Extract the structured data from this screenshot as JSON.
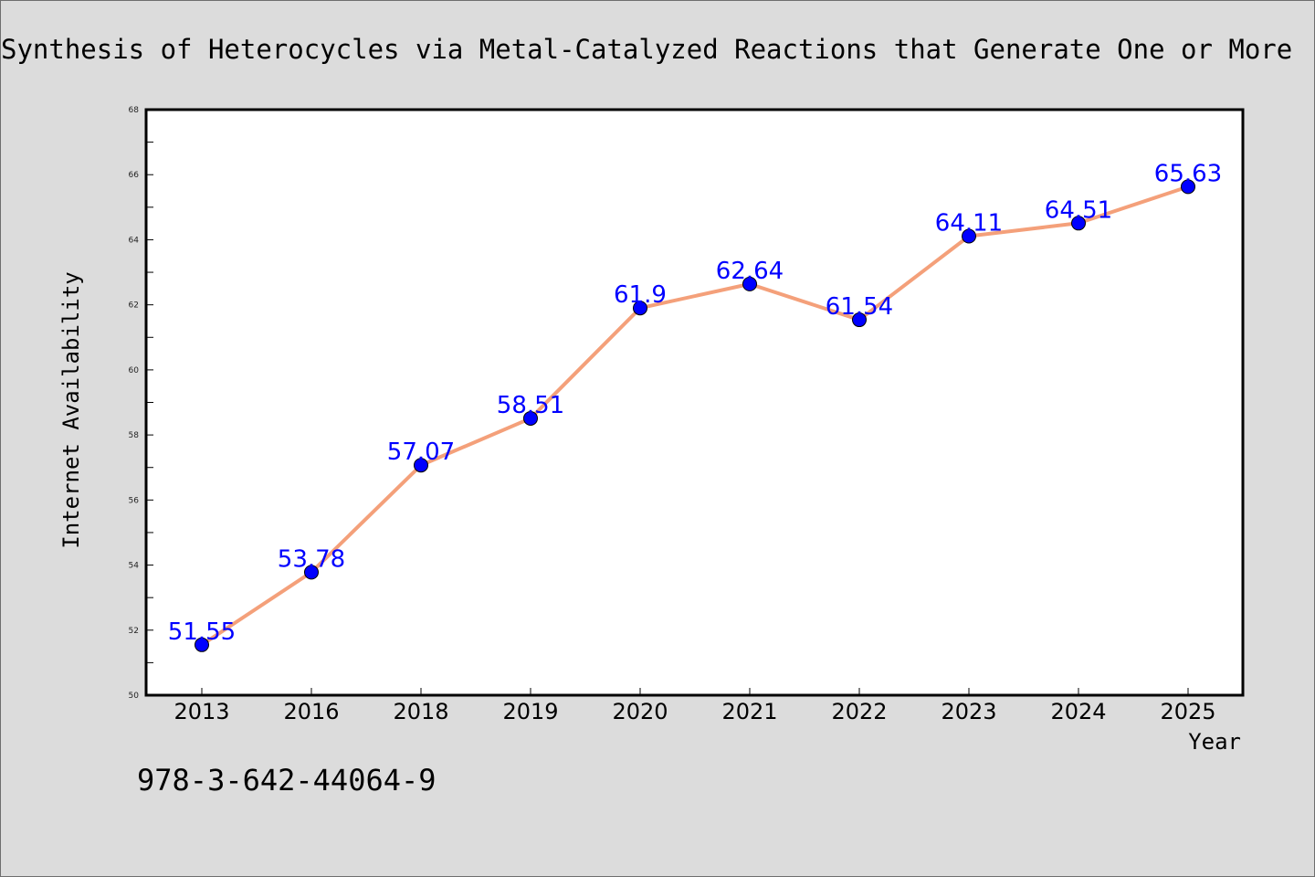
{
  "chart_data": {
    "type": "line",
    "title": "Synthesis of Heterocycles via Metal-Catalyzed Reactions that Generate One or More",
    "xlabel": "Year",
    "ylabel": "Internet Availability",
    "categories": [
      "2013",
      "2016",
      "2018",
      "2019",
      "2020",
      "2021",
      "2022",
      "2023",
      "2024",
      "2025"
    ],
    "series": [
      {
        "values": [
          51.55,
          53.78,
          57.07,
          58.51,
          61.9,
          62.64,
          61.54,
          64.11,
          64.51,
          65.63
        ],
        "labels": [
          "51.55",
          "53.78",
          "57.07",
          "58.51",
          "61.9",
          "62.64",
          "61.54",
          "64.11",
          "64.51",
          "65.63"
        ]
      }
    ],
    "ylim": [
      50,
      68
    ],
    "yticks": [
      "50",
      "52",
      "54",
      "56",
      "58",
      "60",
      "62",
      "64",
      "66",
      "68"
    ],
    "grid": false,
    "line_color": "#f4a07a",
    "marker_color": "#0000ff",
    "label_color": "#0000ff"
  },
  "footnote": "978-3-642-44064-9"
}
